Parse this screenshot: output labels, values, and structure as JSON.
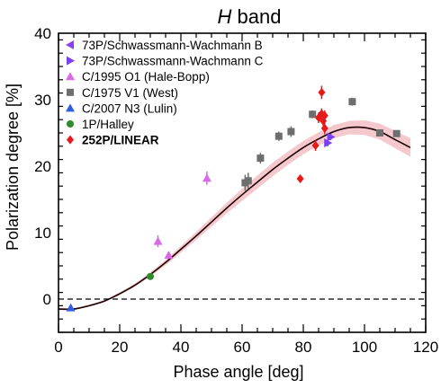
{
  "chart_data": {
    "type": "scatter",
    "title_italic": "H",
    "title_rest": " band",
    "xlabel": "Phase angle [deg]",
    "ylabel": "Polarization degree [%]",
    "xlim": [
      0,
      120
    ],
    "ylim": [
      -5,
      40
    ],
    "xticks": [
      0,
      20,
      40,
      60,
      80,
      100,
      120
    ],
    "yticks": [
      0,
      10,
      20,
      30,
      40
    ],
    "zero_line": "dashed",
    "legend_position": "top-left",
    "colors": {
      "axes": "#000000",
      "model_line": "#1a0000",
      "model_band": "#f4c8cc",
      "triangle_left": "#8a3ff0",
      "triangle_right": "#7a3ff0",
      "triangle_up_magenta": "#d86ae8",
      "square_gray": "#6e6e6e",
      "triangle_up_blue": "#2f5fe0",
      "circle_green": "#2e8b2e",
      "diamond_red": "#e81818"
    },
    "series": [
      {
        "name": "73P/Schwassmann-Wachmann B",
        "marker": "triangle-left",
        "color_key": "triangle_left",
        "bold": false,
        "points": []
      },
      {
        "name": "73P/Schwassmann-Wachmann C",
        "marker": "triangle-right",
        "color_key": "triangle_right",
        "bold": false,
        "points": [
          {
            "x": 88,
            "y": 23.5,
            "err": 0.5
          },
          {
            "x": 89,
            "y": 24.4,
            "err": 0.5
          }
        ]
      },
      {
        "name": "C/1995 O1 (Hale-Bopp)",
        "marker": "triangle-up",
        "color_key": "triangle_up_magenta",
        "bold": false,
        "points": [
          {
            "x": 32.5,
            "y": 8.7,
            "err": 0.9
          },
          {
            "x": 36,
            "y": 6.6,
            "err": 0.5
          },
          {
            "x": 48.5,
            "y": 18.2,
            "err": 1.0
          }
        ]
      },
      {
        "name": "C/1975 V1 (West)",
        "marker": "square",
        "color_key": "square_gray",
        "bold": false,
        "points": [
          {
            "x": 61,
            "y": 17.5,
            "err": 1.2
          },
          {
            "x": 62,
            "y": 17.8,
            "err": 1.2
          },
          {
            "x": 66,
            "y": 21.2,
            "err": 0.8
          },
          {
            "x": 72,
            "y": 24.5,
            "err": 0.7
          },
          {
            "x": 76,
            "y": 25.2,
            "err": 0.8
          },
          {
            "x": 83,
            "y": 27.8,
            "err": 0.6
          },
          {
            "x": 96,
            "y": 29.7,
            "err": 0.6
          },
          {
            "x": 105,
            "y": 25.0,
            "err": 0.5
          },
          {
            "x": 110.5,
            "y": 24.9,
            "err": 0.5
          }
        ]
      },
      {
        "name": "C/2007 N3 (Lulin)",
        "marker": "triangle-up",
        "color_key": "triangle_up_blue",
        "bold": false,
        "points": [
          {
            "x": 4,
            "y": -1.3,
            "err": 0.2
          }
        ]
      },
      {
        "name": "1P/Halley",
        "marker": "circle",
        "color_key": "circle_green",
        "bold": false,
        "points": [
          {
            "x": 30,
            "y": 3.4,
            "err": 0.2
          }
        ]
      },
      {
        "name": "252P/LINEAR",
        "marker": "diamond",
        "color_key": "diamond_red",
        "bold": true,
        "points": [
          {
            "x": 79,
            "y": 18.1,
            "err": 0.6
          },
          {
            "x": 84,
            "y": 23.1,
            "err": 0.8
          },
          {
            "x": 85,
            "y": 27.3,
            "err": 0.8
          },
          {
            "x": 86,
            "y": 31.1,
            "err": 1.0
          },
          {
            "x": 86,
            "y": 27.9,
            "err": 0.8
          },
          {
            "x": 86.5,
            "y": 26.8,
            "err": 0.8
          },
          {
            "x": 87,
            "y": 27.6,
            "err": 0.8
          },
          {
            "x": 87,
            "y": 25.7,
            "err": 0.9
          }
        ]
      }
    ],
    "model_curve": {
      "x": [
        0,
        5,
        10,
        15,
        20,
        25,
        30,
        35,
        40,
        45,
        50,
        55,
        60,
        65,
        70,
        75,
        80,
        85,
        90,
        95,
        100,
        105,
        110,
        115
      ],
      "y": [
        -1.5,
        -1.5,
        -1.0,
        -0.3,
        0.8,
        2.1,
        3.7,
        5.5,
        7.5,
        9.5,
        11.6,
        13.7,
        15.7,
        17.6,
        19.5,
        21.2,
        22.8,
        24.1,
        25.2,
        25.8,
        25.8,
        25.2,
        24.0,
        22.8
      ],
      "band": [
        0.15,
        0.15,
        0.15,
        0.15,
        0.2,
        0.25,
        0.3,
        0.4,
        0.5,
        0.6,
        0.7,
        0.8,
        0.9,
        1.0,
        1.0,
        1.0,
        1.0,
        1.0,
        1.0,
        1.0,
        1.1,
        1.2,
        1.3,
        1.4
      ]
    }
  }
}
